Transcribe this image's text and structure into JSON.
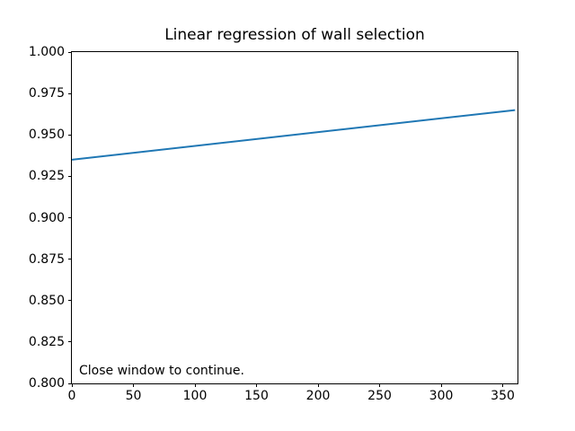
{
  "figure": {
    "background": "#ffffff",
    "spine_color": "#000000",
    "text_color": "#000000"
  },
  "chart_data": {
    "type": "line",
    "title": "Linear regression of wall selection",
    "xlabel": "",
    "ylabel": "",
    "xlim": [
      0,
      362
    ],
    "ylim": [
      0.8,
      1.0
    ],
    "xticks": [
      0,
      50,
      100,
      150,
      200,
      250,
      300,
      350
    ],
    "xtick_labels": [
      "0",
      "50",
      "100",
      "150",
      "200",
      "250",
      "300",
      "350"
    ],
    "yticks": [
      0.8,
      0.825,
      0.85,
      0.875,
      0.9,
      0.925,
      0.95,
      0.975,
      1.0
    ],
    "ytick_labels": [
      "0.800",
      "0.825",
      "0.850",
      "0.875",
      "0.900",
      "0.925",
      "0.950",
      "0.975",
      "1.000"
    ],
    "grid": false,
    "legend": "none",
    "series": [
      {
        "name": "regression-line",
        "color": "#1f77b4",
        "x": [
          0,
          360
        ],
        "y": [
          0.935,
          0.965
        ]
      }
    ],
    "annotation": "Close window to continue."
  }
}
